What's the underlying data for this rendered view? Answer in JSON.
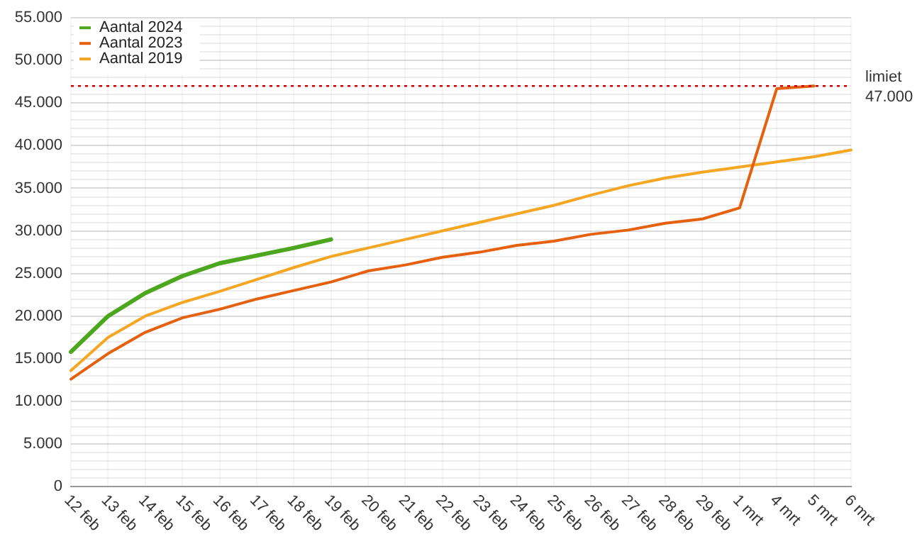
{
  "chart_data": {
    "type": "line",
    "categories": [
      "12 feb",
      "13 feb",
      "14 feb",
      "15 feb",
      "16 feb",
      "17 feb",
      "18 feb",
      "19 feb",
      "20 feb",
      "21 feb",
      "22 feb",
      "23 feb",
      "24 feb",
      "25 feb",
      "26 feb",
      "27 feb",
      "28 feb",
      "29 feb",
      "1 mrt",
      "4 mrt",
      "5 mrt",
      "6 mrt"
    ],
    "series": [
      {
        "name": "Aantal 2024",
        "color": "#4ca71e",
        "values": [
          15800,
          20000,
          22700,
          24700,
          26200,
          27100,
          28000,
          29000,
          null,
          null,
          null,
          null,
          null,
          null,
          null,
          null,
          null,
          null,
          null,
          null,
          null,
          null
        ]
      },
      {
        "name": "Aantal 2023",
        "color": "#e5600f",
        "values": [
          12600,
          15600,
          18100,
          19800,
          20800,
          22000,
          23000,
          24000,
          25300,
          26000,
          26900,
          27500,
          28300,
          28800,
          29600,
          30100,
          30900,
          31400,
          32700,
          46700,
          47000,
          null
        ]
      },
      {
        "name": "Aantal 2019",
        "color": "#f5a623",
        "values": [
          13600,
          17500,
          20000,
          21600,
          22900,
          24300,
          25700,
          27000,
          28000,
          29000,
          30000,
          31000,
          32000,
          33000,
          34200,
          35300,
          36200,
          36900,
          37500,
          38100,
          38700,
          39500
        ]
      }
    ],
    "ylim": [
      0,
      55000
    ],
    "yticks": [
      0,
      {
        "value": 1000,
        "label": null
      },
      {
        "value": 2000,
        "label": null
      },
      {
        "value": 3000,
        "label": null
      },
      {
        "value": 4000,
        "label": null
      },
      {
        "value": 5000,
        "label": "5.000"
      },
      {
        "value": 6000,
        "label": null
      },
      {
        "value": 7000,
        "label": null
      },
      {
        "value": 8000,
        "label": null
      },
      {
        "value": 9000,
        "label": null
      },
      {
        "value": 10000,
        "label": "10.000"
      },
      {
        "value": 11000,
        "label": null
      },
      {
        "value": 12000,
        "label": null
      },
      {
        "value": 13000,
        "label": null
      },
      {
        "value": 14000,
        "label": null
      },
      {
        "value": 15000,
        "label": "15.000"
      },
      {
        "value": 16000,
        "label": null
      },
      {
        "value": 17000,
        "label": null
      },
      {
        "value": 18000,
        "label": null
      },
      {
        "value": 19000,
        "label": null
      },
      {
        "value": 20000,
        "label": "20.000"
      },
      {
        "value": 21000,
        "label": null
      },
      {
        "value": 22000,
        "label": null
      },
      {
        "value": 23000,
        "label": null
      },
      {
        "value": 24000,
        "label": null
      },
      {
        "value": 25000,
        "label": "25.000"
      },
      {
        "value": 26000,
        "label": null
      },
      {
        "value": 27000,
        "label": null
      },
      {
        "value": 28000,
        "label": null
      },
      {
        "value": 29000,
        "label": null
      },
      {
        "value": 30000,
        "label": "30.000"
      },
      {
        "value": 31000,
        "label": null
      },
      {
        "value": 32000,
        "label": null
      },
      {
        "value": 33000,
        "label": null
      },
      {
        "value": 34000,
        "label": null
      },
      {
        "value": 35000,
        "label": "35.000"
      },
      {
        "value": 36000,
        "label": null
      },
      {
        "value": 37000,
        "label": null
      },
      {
        "value": 38000,
        "label": null
      },
      {
        "value": 39000,
        "label": null
      },
      {
        "value": 40000,
        "label": "40.000"
      },
      {
        "value": 41000,
        "label": null
      },
      {
        "value": 42000,
        "label": null
      },
      {
        "value": 43000,
        "label": null
      },
      {
        "value": 44000,
        "label": null
      },
      {
        "value": 45000,
        "label": "45.000"
      },
      {
        "value": 46000,
        "label": null
      },
      {
        "value": 47000,
        "label": null
      },
      {
        "value": 48000,
        "label": null
      },
      {
        "value": 49000,
        "label": null
      },
      {
        "value": 50000,
        "label": "50.000"
      },
      {
        "value": 51000,
        "label": null
      },
      {
        "value": 52000,
        "label": null
      },
      {
        "value": 53000,
        "label": null
      },
      {
        "value": 54000,
        "label": null
      },
      {
        "value": 55000,
        "label": "55.000"
      }
    ],
    "ref_lines": [
      {
        "axis": "y",
        "value": 47000,
        "label": "limiet\n47.000",
        "color": "#cc0000",
        "line_style": "dotted"
      }
    ],
    "grid": true,
    "legend": "top left",
    "marker": "none",
    "line_style": "solid"
  }
}
